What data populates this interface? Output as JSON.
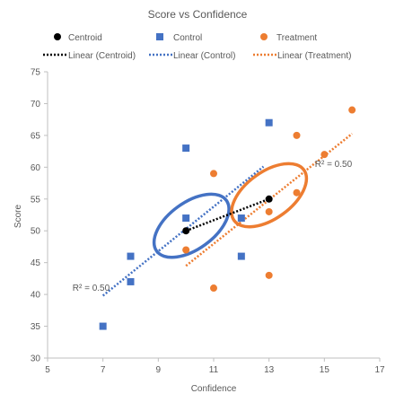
{
  "chart_data": {
    "type": "scatter",
    "title": "Score vs Confidence",
    "xlabel": "Confidence",
    "ylabel": "Score",
    "xlim": [
      5,
      17
    ],
    "ylim": [
      30,
      75
    ],
    "x_ticks": [
      5,
      7,
      9,
      11,
      13,
      15,
      17
    ],
    "y_ticks": [
      30,
      35,
      40,
      45,
      50,
      55,
      60,
      65,
      70,
      75
    ],
    "grid": false,
    "legend_position": "top",
    "legend": {
      "centroid": "Centroid",
      "control": "Control",
      "treatment": "Treatment",
      "linear_centroid": "Linear (Centroid)",
      "linear_control": "Linear (Control)",
      "linear_treatment": "Linear (Treatment)"
    },
    "series": [
      {
        "name": "Centroid",
        "marker": "circle",
        "color": "#000000",
        "points": [
          [
            10,
            50
          ],
          [
            13,
            55
          ]
        ]
      },
      {
        "name": "Control",
        "marker": "square",
        "color": "#4472C4",
        "points": [
          [
            7,
            35
          ],
          [
            8,
            42
          ],
          [
            8,
            46
          ],
          [
            10,
            63
          ],
          [
            10,
            52
          ],
          [
            12,
            46
          ],
          [
            12,
            52
          ],
          [
            13,
            67
          ]
        ]
      },
      {
        "name": "Treatment",
        "marker": "circle",
        "color": "#ED7D31",
        "points": [
          [
            10,
            47
          ],
          [
            11,
            59
          ],
          [
            11,
            41
          ],
          [
            13,
            53
          ],
          [
            13,
            43
          ],
          [
            14,
            65
          ],
          [
            14,
            56
          ],
          [
            15,
            62
          ],
          [
            16,
            69
          ]
        ]
      }
    ],
    "trendlines": [
      {
        "name": "Linear (Centroid)",
        "color": "#000000",
        "x_range": [
          10,
          13
        ],
        "slope": 1.667,
        "intercept": 33.33
      },
      {
        "name": "Linear (Control)",
        "color": "#4472C4",
        "x_range": [
          7,
          12.8
        ],
        "slope": 3.5,
        "intercept": 15.3
      },
      {
        "name": "Linear (Treatment)",
        "color": "#ED7D31",
        "x_range": [
          10,
          16
        ],
        "slope": 3.46,
        "intercept": 9.9
      }
    ],
    "ellipses": [
      {
        "color": "#4472C4",
        "center": [
          10.2,
          50.8
        ]
      },
      {
        "color": "#ED7D31",
        "center": [
          13.0,
          55.6
        ]
      }
    ],
    "annotations": [
      {
        "text": "R² = 0.50",
        "anchor": [
          5.9,
          41
        ]
      },
      {
        "text": "R² = 0.50",
        "anchor": [
          16.0,
          60.5
        ]
      }
    ]
  }
}
